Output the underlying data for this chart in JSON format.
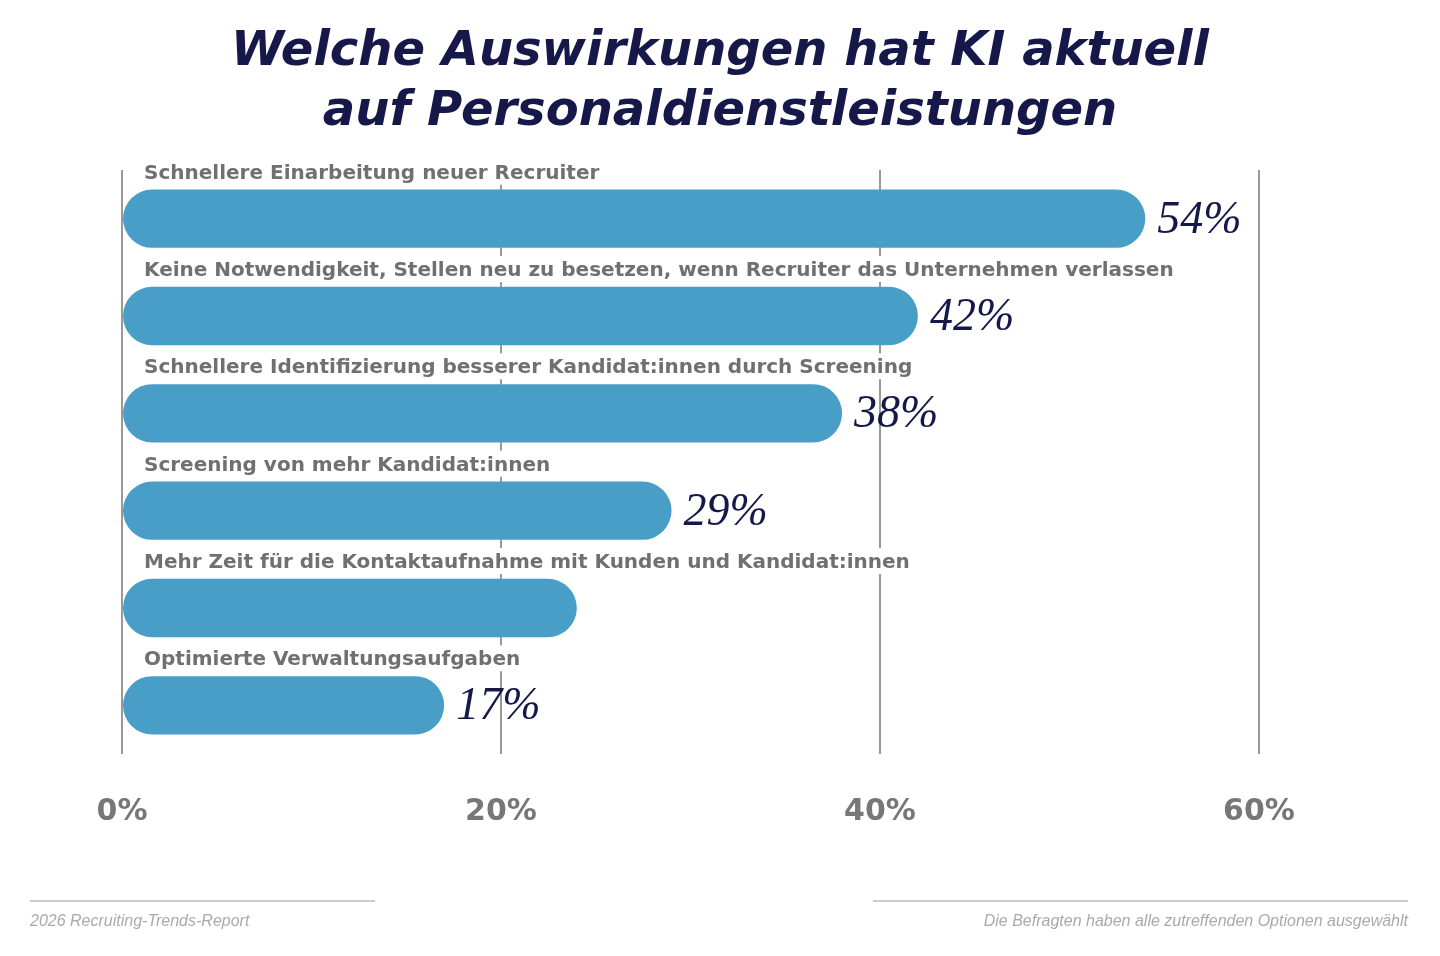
{
  "chart_data": {
    "type": "bar",
    "orientation": "horizontal",
    "title": "Welche Auswirkungen hat KI aktuell auf Personaldienstleistungen",
    "categories": [
      "Schnellere Einarbeitung neuer Recruiter",
      "Keine Notwendigkeit, Stellen neu zu besetzen, wenn Recruiter das Unternehmen verlassen",
      "Schnellere Identifizierung besserer Kandidat:innen durch Screening",
      "Screening von mehr Kandidat:innen",
      "Mehr Zeit für die Kontaktaufnahme mit Kunden und Kandidat:innen",
      "Optimierte Verwaltungsaufgaben"
    ],
    "values": [
      54,
      42,
      38,
      29,
      24,
      17
    ],
    "value_labels": [
      "54%",
      "42%",
      "38%",
      "29%",
      null,
      "17%"
    ],
    "color": "#489ec7",
    "xlim": [
      0,
      60
    ],
    "xticks": [
      {
        "value": 0,
        "label": "0%"
      },
      {
        "value": 20,
        "label": "20%"
      },
      {
        "value": 40,
        "label": "40%"
      },
      {
        "value": 60,
        "label": "60%"
      }
    ],
    "grid": "x",
    "legend": false,
    "annotations": [
      "2026 Recruiting-Trends-Report",
      "Die Befragten haben alle zutreffenden Optionen ausgewählt"
    ]
  }
}
